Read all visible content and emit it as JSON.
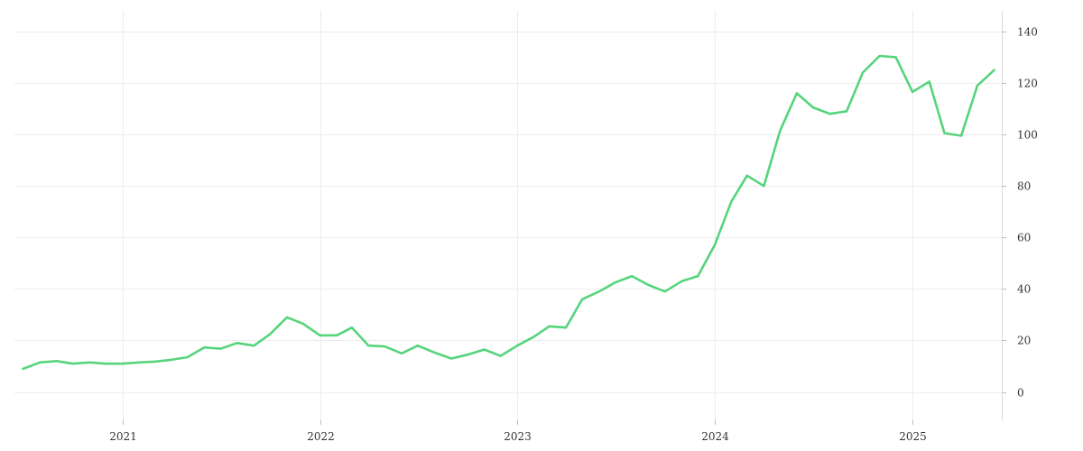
{
  "colors": {
    "series": "#56d47c",
    "grid": "#ececec",
    "text": "#333333"
  },
  "chart_data": {
    "type": "line",
    "title": "",
    "xlabel": "",
    "ylabel": "",
    "x_ticks": [
      "2021",
      "2022",
      "2023",
      "2024",
      "2025"
    ],
    "y_ticks": [
      0,
      20,
      40,
      60,
      80,
      100,
      120,
      140
    ],
    "ylim": [
      -11,
      148
    ],
    "xlim": [
      "2020-06-15",
      "2025-06-15"
    ],
    "y_axis_side": "right",
    "grid": true,
    "legend": "none",
    "series": [
      {
        "x": [
          "2020-07-01",
          "2020-08-01",
          "2020-09-01",
          "2020-10-01",
          "2020-11-01",
          "2020-12-01",
          "2021-01-01",
          "2021-02-01",
          "2021-03-01",
          "2021-04-01",
          "2021-05-01",
          "2021-06-01",
          "2021-07-01",
          "2021-08-01",
          "2021-09-01",
          "2021-10-01",
          "2021-11-01",
          "2021-12-01",
          "2022-01-01",
          "2022-02-01",
          "2022-03-01",
          "2022-04-01",
          "2022-05-01",
          "2022-06-01",
          "2022-07-01",
          "2022-08-01",
          "2022-09-01",
          "2022-10-01",
          "2022-11-01",
          "2022-12-01",
          "2023-01-01",
          "2023-02-01",
          "2023-03-01",
          "2023-04-01",
          "2023-05-01",
          "2023-06-01",
          "2023-07-01",
          "2023-08-01",
          "2023-09-01",
          "2023-10-01",
          "2023-11-01",
          "2023-12-01",
          "2024-01-01",
          "2024-02-01",
          "2024-03-01",
          "2024-04-01",
          "2024-05-01",
          "2024-06-01",
          "2024-07-01",
          "2024-08-01",
          "2024-09-01",
          "2024-10-01",
          "2024-11-01",
          "2024-12-01",
          "2025-01-01",
          "2025-02-01",
          "2025-03-01",
          "2025-04-01",
          "2025-05-01",
          "2025-06-01"
        ],
        "values": [
          9,
          11.5,
          12,
          11,
          11.5,
          11,
          11,
          11.5,
          11.8,
          12.5,
          13.5,
          17.3,
          16.8,
          19,
          18,
          22.5,
          29,
          26.5,
          22,
          22,
          25,
          18,
          17.7,
          15,
          18,
          15.3,
          13,
          14.5,
          16.5,
          14,
          18,
          21.5,
          25.5,
          25,
          36,
          39,
          42.5,
          45,
          41.5,
          39,
          43,
          45,
          57,
          74,
          84,
          80,
          101.5,
          116,
          110.5,
          108,
          109,
          124,
          130.5,
          130,
          116.5,
          120.5,
          100.5,
          99.5,
          119,
          125
        ]
      }
    ]
  }
}
